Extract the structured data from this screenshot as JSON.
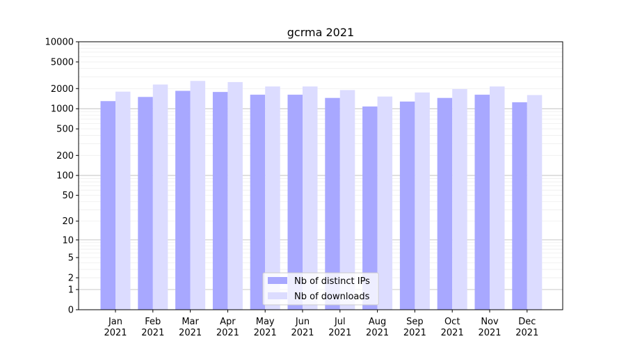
{
  "chart_data": {
    "type": "bar",
    "title": "gcrma 2021",
    "xlabel": "",
    "ylabel": "",
    "y_scale": "symlog",
    "ylim": [
      0,
      10000
    ],
    "y_ticks": [
      0,
      1,
      2,
      5,
      10,
      20,
      50,
      100,
      200,
      500,
      1000,
      2000,
      5000,
      10000
    ],
    "categories": [
      [
        "Jan",
        "2021"
      ],
      [
        "Feb",
        "2021"
      ],
      [
        "Mar",
        "2021"
      ],
      [
        "Apr",
        "2021"
      ],
      [
        "May",
        "2021"
      ],
      [
        "Jun",
        "2021"
      ],
      [
        "Jul",
        "2021"
      ],
      [
        "Aug",
        "2021"
      ],
      [
        "Sep",
        "2021"
      ],
      [
        "Oct",
        "2021"
      ],
      [
        "Nov",
        "2021"
      ],
      [
        "Dec",
        "2021"
      ]
    ],
    "series": [
      {
        "name": "Nb of distinct IPs",
        "color": "#a8a8ff",
        "values": [
          1300,
          1500,
          1850,
          1780,
          1620,
          1620,
          1450,
          1080,
          1280,
          1450,
          1620,
          1250
        ]
      },
      {
        "name": "Nb of downloads",
        "color": "#dcdcff",
        "values": [
          1800,
          2300,
          2600,
          2500,
          2150,
          2150,
          1900,
          1520,
          1750,
          1970,
          2150,
          1600
        ]
      }
    ],
    "legend_position": "lower-center",
    "grid": true
  }
}
